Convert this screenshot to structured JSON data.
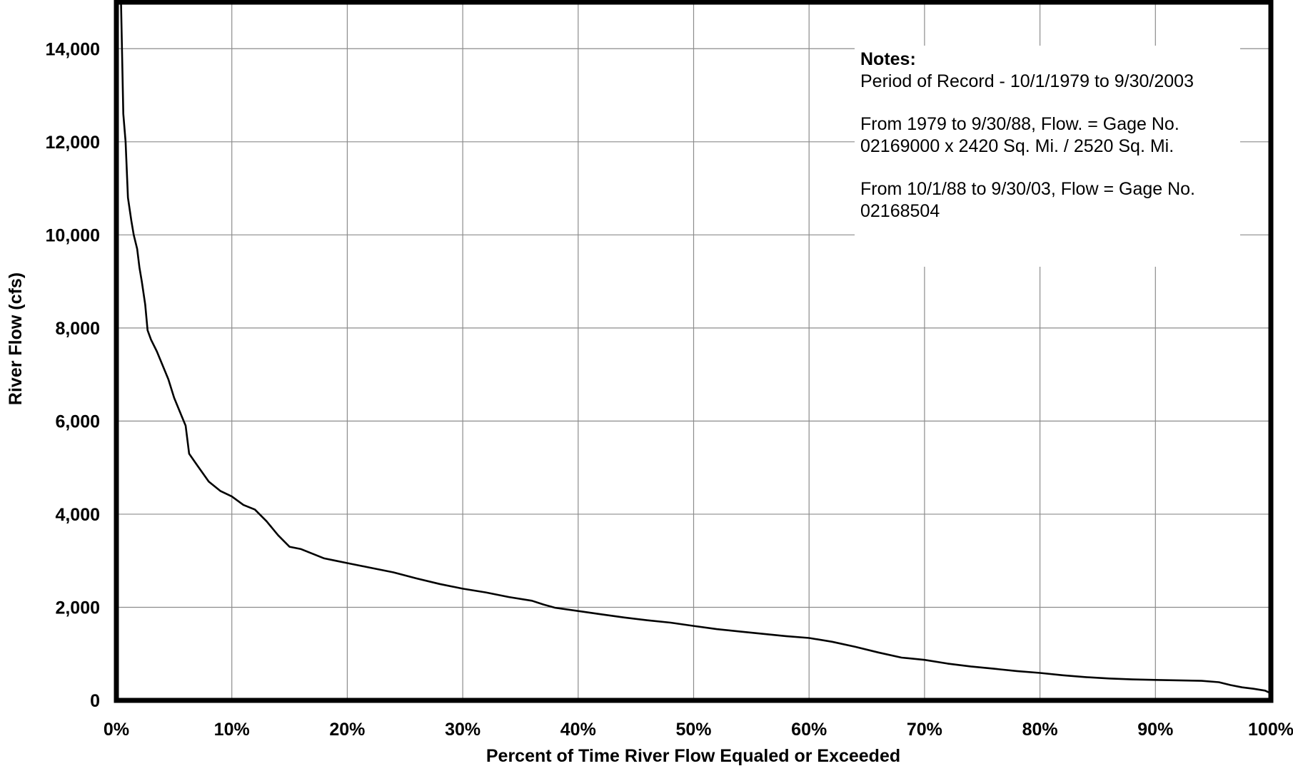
{
  "chart_data": {
    "type": "line",
    "title": "",
    "xlabel": "Percent of Time River Flow Equaled or Exceeded",
    "ylabel": "River Flow (cfs)",
    "xlim": [
      0,
      100
    ],
    "ylim": [
      0,
      15000
    ],
    "x_ticks": [
      "0%",
      "10%",
      "20%",
      "30%",
      "40%",
      "50%",
      "60%",
      "70%",
      "80%",
      "90%",
      "100%"
    ],
    "y_ticks": [
      "0",
      "2,000",
      "4,000",
      "6,000",
      "8,000",
      "10,000",
      "12,000",
      "14,000"
    ],
    "grid": true,
    "legend": "none",
    "series": [
      {
        "x": [
          0.4,
          0.6,
          0.8,
          1.0,
          1.3,
          1.5,
          1.8,
          2.0,
          2.2,
          2.5,
          2.7,
          3.0,
          3.5,
          4.0,
          4.5,
          5.0,
          5.5,
          6.0,
          6.3,
          7.0,
          8.0,
          9.0,
          10.0,
          11.0,
          12.0,
          13.0,
          14.0,
          15.0,
          16.0,
          17.0,
          18.0,
          19.0,
          20.0,
          22.0,
          24.0,
          26.0,
          28.0,
          30.0,
          32.0,
          34.0,
          36.0,
          37.0,
          38.0,
          40.0,
          42.0,
          44.0,
          46.0,
          48.0,
          50.0,
          52.0,
          54.0,
          56.0,
          58.0,
          60.0,
          62.0,
          64.0,
          66.0,
          68.0,
          70.0,
          72.0,
          74.0,
          76.0,
          78.0,
          80.0,
          82.0,
          84.0,
          86.0,
          88.0,
          90.0,
          92.0,
          94.0,
          95.5,
          96.5,
          97.5,
          98.5,
          99.5,
          100.0
        ],
        "y": [
          15000,
          12600,
          12000,
          10800,
          10300,
          10000,
          9700,
          9300,
          9000,
          8500,
          7950,
          7750,
          7500,
          7200,
          6900,
          6500,
          6200,
          5900,
          5300,
          5050,
          4700,
          4500,
          4380,
          4200,
          4100,
          3850,
          3550,
          3300,
          3250,
          3150,
          3050,
          3000,
          2950,
          2850,
          2750,
          2620,
          2500,
          2400,
          2320,
          2220,
          2140,
          2060,
          1990,
          1920,
          1850,
          1780,
          1720,
          1670,
          1600,
          1530,
          1480,
          1430,
          1380,
          1340,
          1260,
          1150,
          1030,
          920,
          870,
          790,
          730,
          680,
          630,
          590,
          540,
          500,
          470,
          450,
          440,
          430,
          420,
          390,
          330,
          280,
          250,
          210,
          150
        ]
      }
    ],
    "notes": {
      "title": "Notes:",
      "lines": [
        "Period of Record - 10/1/1979 to 9/30/2003",
        "",
        "From 1979 to 9/30/88, Flow. = Gage No.",
        "02169000 x 2420 Sq. Mi. / 2520 Sq. Mi.",
        "",
        "From 10/1/88 to 9/30/03, Flow = Gage No.",
        "02168504"
      ]
    }
  }
}
